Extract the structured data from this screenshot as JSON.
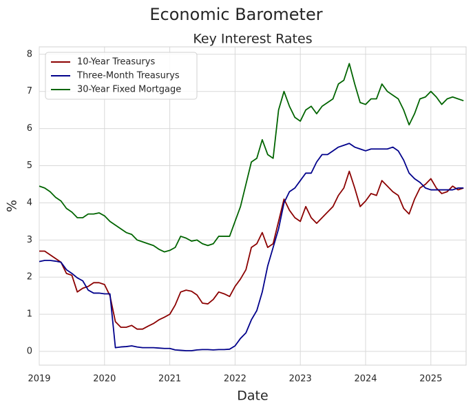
{
  "chart_data": {
    "type": "line",
    "title": "Economic Barometer",
    "subtitle": "Key Interest Rates",
    "x_label": "Date",
    "y_label": "%",
    "x": [
      2019,
      2019.0833,
      2019.1667,
      2019.25,
      2019.3333,
      2019.4167,
      2019.5,
      2019.5833,
      2019.6667,
      2019.75,
      2019.8333,
      2019.9167,
      2020,
      2020.0833,
      2020.1667,
      2020.25,
      2020.3333,
      2020.4167,
      2020.5,
      2020.5833,
      2020.6667,
      2020.75,
      2020.8333,
      2020.9167,
      2021,
      2021.0833,
      2021.1667,
      2021.25,
      2021.3333,
      2021.4167,
      2021.5,
      2021.5833,
      2021.6667,
      2021.75,
      2021.8333,
      2021.9167,
      2022,
      2022.0833,
      2022.1667,
      2022.25,
      2022.3333,
      2022.4167,
      2022.5,
      2022.5833,
      2022.6667,
      2022.75,
      2022.8333,
      2022.9167,
      2023,
      2023.0833,
      2023.1667,
      2023.25,
      2023.3333,
      2023.4167,
      2023.5,
      2023.5833,
      2023.6667,
      2023.75,
      2023.8333,
      2023.9167,
      2024,
      2024.0833,
      2024.1667,
      2024.25,
      2024.3333,
      2024.4167,
      2024.5,
      2024.5833,
      2024.6667,
      2024.75,
      2024.8333,
      2024.9167,
      2025,
      2025.0833,
      2025.1667,
      2025.25,
      2025.3333,
      2025.4167,
      2025.5
    ],
    "series": [
      {
        "name": "10-Year Treasurys",
        "color": "#8b0000",
        "values": [
          2.7,
          2.7,
          2.6,
          2.5,
          2.4,
          2.1,
          2.05,
          1.6,
          1.7,
          1.75,
          1.85,
          1.85,
          1.8,
          1.5,
          0.8,
          0.65,
          0.65,
          0.7,
          0.6,
          0.6,
          0.68,
          0.75,
          0.85,
          0.92,
          1.0,
          1.25,
          1.6,
          1.65,
          1.62,
          1.52,
          1.3,
          1.28,
          1.4,
          1.6,
          1.55,
          1.48,
          1.75,
          1.95,
          2.2,
          2.8,
          2.9,
          3.2,
          2.8,
          2.9,
          3.5,
          4.1,
          3.8,
          3.6,
          3.5,
          3.9,
          3.6,
          3.45,
          3.6,
          3.75,
          3.9,
          4.2,
          4.4,
          4.85,
          4.4,
          3.9,
          4.05,
          4.25,
          4.2,
          4.6,
          4.45,
          4.3,
          4.2,
          3.85,
          3.7,
          4.1,
          4.4,
          4.5,
          4.65,
          4.4,
          4.25,
          4.3,
          4.45,
          4.35,
          4.4
        ]
      },
      {
        "name": "Three-Month Treasurys",
        "color": "#00008b",
        "values": [
          2.42,
          2.45,
          2.45,
          2.43,
          2.4,
          2.2,
          2.1,
          1.98,
          1.9,
          1.65,
          1.57,
          1.57,
          1.55,
          1.55,
          0.1,
          0.12,
          0.13,
          0.15,
          0.12,
          0.1,
          0.1,
          0.1,
          0.09,
          0.08,
          0.08,
          0.04,
          0.03,
          0.02,
          0.02,
          0.04,
          0.05,
          0.05,
          0.04,
          0.05,
          0.05,
          0.06,
          0.15,
          0.35,
          0.5,
          0.85,
          1.1,
          1.6,
          2.3,
          2.8,
          3.3,
          4.0,
          4.3,
          4.4,
          4.6,
          4.8,
          4.8,
          5.1,
          5.3,
          5.3,
          5.4,
          5.5,
          5.55,
          5.6,
          5.5,
          5.45,
          5.4,
          5.45,
          5.45,
          5.45,
          5.45,
          5.5,
          5.4,
          5.15,
          4.8,
          4.65,
          4.55,
          4.4,
          4.35,
          4.35,
          4.35,
          4.35,
          4.35,
          4.4,
          4.4
        ]
      },
      {
        "name": "30-Year Fixed Mortgage",
        "color": "#006400",
        "values": [
          4.45,
          4.4,
          4.3,
          4.15,
          4.05,
          3.85,
          3.75,
          3.6,
          3.6,
          3.7,
          3.7,
          3.73,
          3.65,
          3.5,
          3.4,
          3.3,
          3.2,
          3.15,
          3.0,
          2.95,
          2.9,
          2.85,
          2.75,
          2.68,
          2.72,
          2.8,
          3.1,
          3.05,
          2.97,
          3.0,
          2.9,
          2.85,
          2.9,
          3.1,
          3.1,
          3.1,
          3.5,
          3.9,
          4.5,
          5.1,
          5.2,
          5.7,
          5.3,
          5.2,
          6.5,
          7.0,
          6.6,
          6.3,
          6.2,
          6.5,
          6.6,
          6.4,
          6.6,
          6.7,
          6.8,
          7.2,
          7.3,
          7.75,
          7.2,
          6.7,
          6.65,
          6.8,
          6.8,
          7.2,
          7.0,
          6.9,
          6.8,
          6.5,
          6.1,
          6.4,
          6.8,
          6.85,
          7.0,
          6.85,
          6.65,
          6.8,
          6.85,
          6.8,
          6.75
        ]
      }
    ],
    "xlim": [
      2019,
      2025.54
    ],
    "xticks": [
      2019,
      2020,
      2021,
      2022,
      2023,
      2024,
      2025
    ],
    "ylim": [
      -0.37,
      8.2
    ],
    "yticks": [
      0,
      1,
      2,
      3,
      4,
      5,
      6,
      7,
      8
    ],
    "grid": true,
    "legend": "upper left"
  }
}
